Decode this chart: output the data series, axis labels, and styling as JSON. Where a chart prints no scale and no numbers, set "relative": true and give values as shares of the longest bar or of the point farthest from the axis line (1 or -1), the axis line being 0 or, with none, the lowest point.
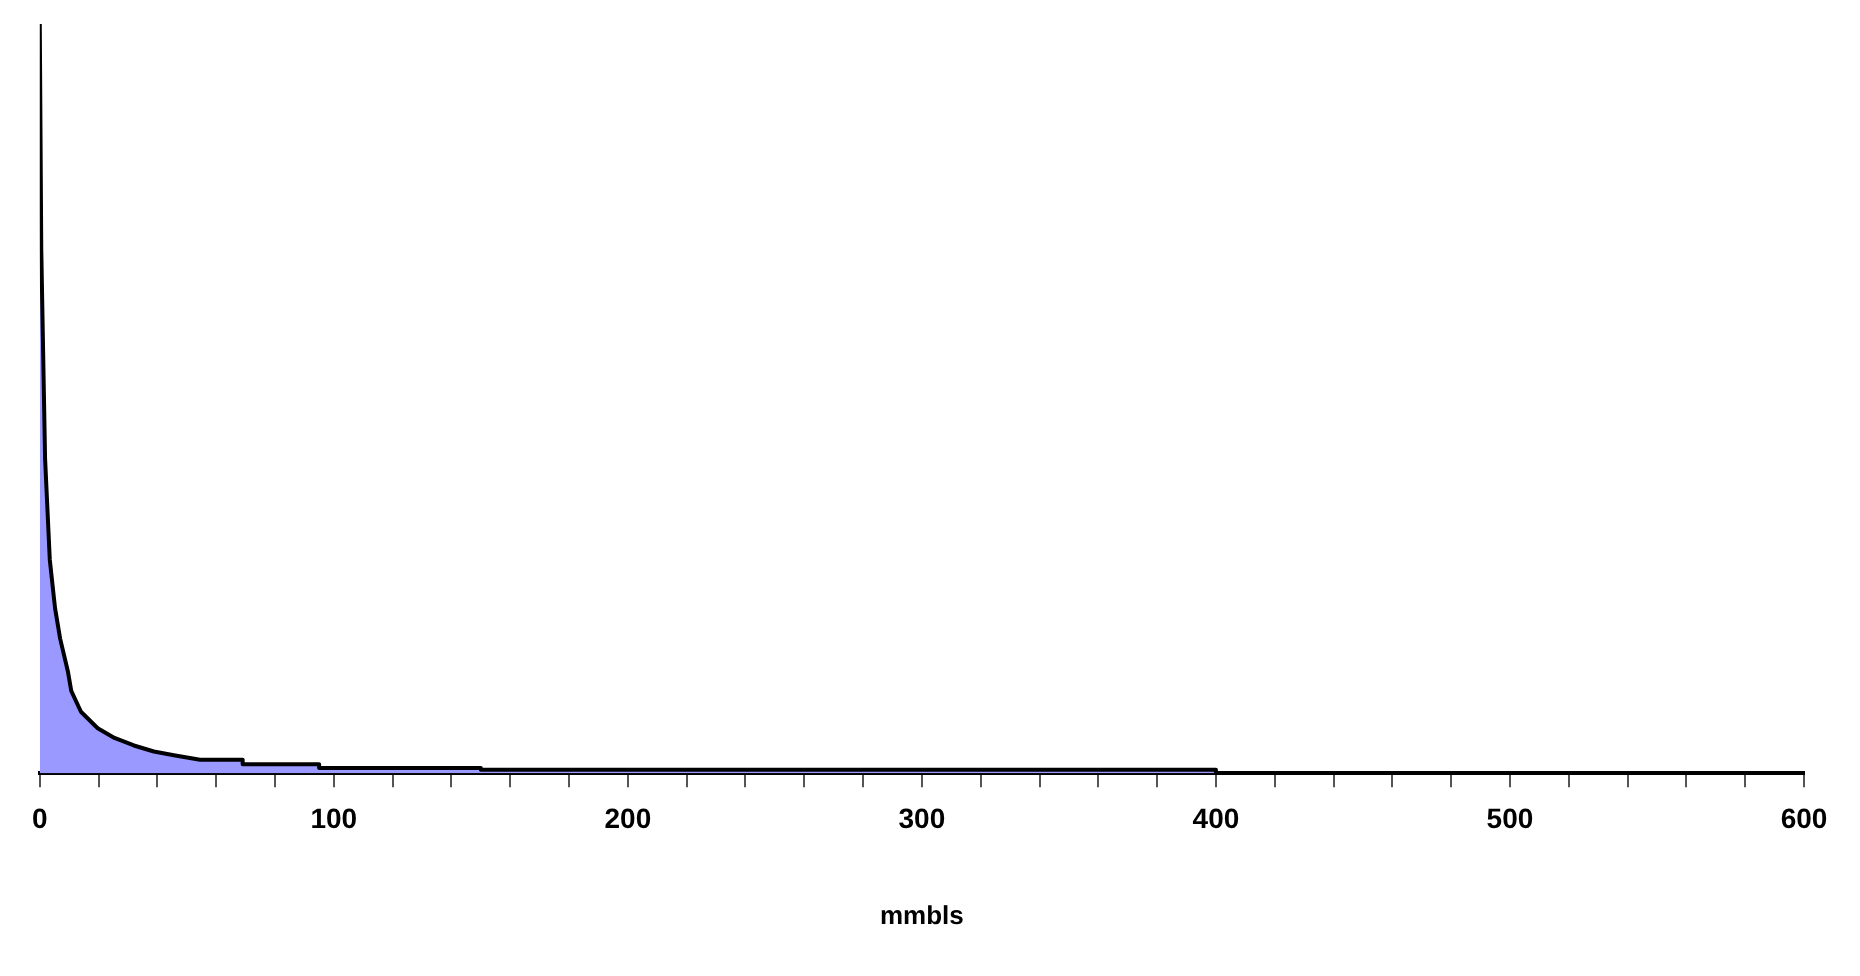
{
  "chart_data": {
    "type": "area",
    "relative": true,
    "xlabel": "mmbls",
    "x": [
      0,
      0.5,
      1.8,
      3.4,
      5.2,
      6.9,
      9.6,
      10.7,
      14,
      19.7,
      25.4,
      32,
      38.8,
      45.6,
      54.5,
      69,
      69,
      95,
      95,
      150,
      150,
      400,
      400
    ],
    "series": [
      {
        "color": "#9999ff",
        "values": [
          1,
          0.7,
          0.42,
          0.285,
          0.22,
          0.18,
          0.135,
          0.11,
          0.082,
          0.06,
          0.047,
          0.037,
          0.029,
          0.024,
          0.018,
          0.018,
          0.012,
          0.012,
          0.007,
          0.007,
          0.0045,
          0.0045,
          0
        ]
      }
    ],
    "xlim": [
      0,
      600
    ],
    "xticks": [
      0,
      {
        "value": 20,
        "label": null
      },
      {
        "value": 40,
        "label": null
      },
      {
        "value": 60,
        "label": null
      },
      {
        "value": 80,
        "label": null
      },
      100,
      {
        "value": 120,
        "label": null
      },
      {
        "value": 140,
        "label": null
      },
      {
        "value": 160,
        "label": null
      },
      {
        "value": 180,
        "label": null
      },
      200,
      {
        "value": 220,
        "label": null
      },
      {
        "value": 240,
        "label": null
      },
      {
        "value": 260,
        "label": null
      },
      {
        "value": 280,
        "label": null
      },
      300,
      {
        "value": 320,
        "label": null
      },
      {
        "value": 340,
        "label": null
      },
      {
        "value": 360,
        "label": null
      },
      {
        "value": 380,
        "label": null
      },
      400,
      {
        "value": 420,
        "label": null
      },
      {
        "value": 440,
        "label": null
      },
      {
        "value": 460,
        "label": null
      },
      {
        "value": 480,
        "label": null
      },
      500,
      {
        "value": 520,
        "label": null
      },
      {
        "value": 540,
        "label": null
      },
      {
        "value": 560,
        "label": null
      },
      {
        "value": 580,
        "label": null
      },
      600
    ],
    "grid": false,
    "legend": false,
    "marker": "none"
  }
}
